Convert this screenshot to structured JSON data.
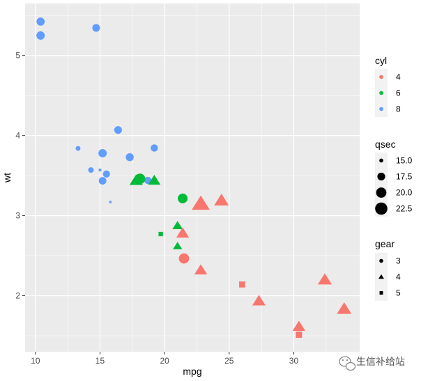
{
  "chart_data": {
    "type": "scatter",
    "title": "",
    "xlabel": "mpg",
    "ylabel": "wt",
    "xlim": [
      9.2,
      35.1
    ],
    "ylim": [
      1.3,
      5.65
    ],
    "x_ticks": [
      10,
      15,
      20,
      25,
      30
    ],
    "y_ticks": [
      2,
      3,
      4,
      5
    ],
    "x_tick_labels": [
      "10",
      "15",
      "20",
      "25",
      "30"
    ],
    "y_tick_labels": [
      "2",
      "3",
      "4",
      "5"
    ],
    "grid": true,
    "legend_position": "right",
    "points": [
      {
        "mpg": 21.0,
        "wt": 2.62,
        "cyl": "6",
        "gear": "4",
        "qsec": 16.46
      },
      {
        "mpg": 21.0,
        "wt": 2.875,
        "cyl": "6",
        "gear": "4",
        "qsec": 17.02
      },
      {
        "mpg": 22.8,
        "wt": 2.32,
        "cyl": "4",
        "gear": "4",
        "qsec": 18.61
      },
      {
        "mpg": 21.4,
        "wt": 3.215,
        "cyl": "6",
        "gear": "3",
        "qsec": 19.44
      },
      {
        "mpg": 18.7,
        "wt": 3.44,
        "cyl": "8",
        "gear": "3",
        "qsec": 17.02
      },
      {
        "mpg": 18.1,
        "wt": 3.46,
        "cyl": "6",
        "gear": "3",
        "qsec": 20.22
      },
      {
        "mpg": 14.3,
        "wt": 3.57,
        "cyl": "8",
        "gear": "3",
        "qsec": 15.84
      },
      {
        "mpg": 24.4,
        "wt": 3.19,
        "cyl": "4",
        "gear": "4",
        "qsec": 20.0
      },
      {
        "mpg": 22.8,
        "wt": 3.15,
        "cyl": "4",
        "gear": "4",
        "qsec": 22.9
      },
      {
        "mpg": 19.2,
        "wt": 3.44,
        "cyl": "6",
        "gear": "4",
        "qsec": 18.3
      },
      {
        "mpg": 17.8,
        "wt": 3.44,
        "cyl": "6",
        "gear": "4",
        "qsec": 18.9
      },
      {
        "mpg": 16.4,
        "wt": 4.07,
        "cyl": "8",
        "gear": "3",
        "qsec": 17.4
      },
      {
        "mpg": 17.3,
        "wt": 3.73,
        "cyl": "8",
        "gear": "3",
        "qsec": 17.6
      },
      {
        "mpg": 15.2,
        "wt": 3.78,
        "cyl": "8",
        "gear": "3",
        "qsec": 18.0
      },
      {
        "mpg": 10.4,
        "wt": 5.25,
        "cyl": "8",
        "gear": "3",
        "qsec": 17.98
      },
      {
        "mpg": 10.4,
        "wt": 5.424,
        "cyl": "8",
        "gear": "3",
        "qsec": 17.82
      },
      {
        "mpg": 14.7,
        "wt": 5.345,
        "cyl": "8",
        "gear": "3",
        "qsec": 17.42
      },
      {
        "mpg": 32.4,
        "wt": 2.2,
        "cyl": "4",
        "gear": "4",
        "qsec": 19.47
      },
      {
        "mpg": 30.4,
        "wt": 1.615,
        "cyl": "4",
        "gear": "4",
        "qsec": 18.52
      },
      {
        "mpg": 33.9,
        "wt": 1.835,
        "cyl": "4",
        "gear": "4",
        "qsec": 19.9
      },
      {
        "mpg": 21.5,
        "wt": 2.465,
        "cyl": "4",
        "gear": "3",
        "qsec": 20.01
      },
      {
        "mpg": 15.5,
        "wt": 3.52,
        "cyl": "8",
        "gear": "3",
        "qsec": 16.87
      },
      {
        "mpg": 15.2,
        "wt": 3.435,
        "cyl": "8",
        "gear": "3",
        "qsec": 17.3
      },
      {
        "mpg": 13.3,
        "wt": 3.84,
        "cyl": "8",
        "gear": "3",
        "qsec": 15.41
      },
      {
        "mpg": 19.2,
        "wt": 3.845,
        "cyl": "8",
        "gear": "3",
        "qsec": 17.05
      },
      {
        "mpg": 27.3,
        "wt": 1.935,
        "cyl": "4",
        "gear": "4",
        "qsec": 18.9
      },
      {
        "mpg": 26.0,
        "wt": 2.14,
        "cyl": "4",
        "gear": "5",
        "qsec": 16.7
      },
      {
        "mpg": 30.4,
        "wt": 1.513,
        "cyl": "4",
        "gear": "5",
        "qsec": 16.9
      },
      {
        "mpg": 15.8,
        "wt": 3.17,
        "cyl": "8",
        "gear": "5",
        "qsec": 14.5
      },
      {
        "mpg": 19.7,
        "wt": 2.77,
        "cyl": "6",
        "gear": "5",
        "qsec": 15.5
      },
      {
        "mpg": 15.0,
        "wt": 3.57,
        "cyl": "8",
        "gear": "5",
        "qsec": 14.6
      },
      {
        "mpg": 21.4,
        "wt": 2.78,
        "cyl": "4",
        "gear": "4",
        "qsec": 18.6
      }
    ],
    "legends": {
      "cyl": {
        "title": "cyl",
        "entries": [
          {
            "label": "4",
            "color": "#F8766D"
          },
          {
            "label": "6",
            "color": "#00BA38"
          },
          {
            "label": "8",
            "color": "#619CFF"
          }
        ]
      },
      "qsec": {
        "title": "qsec",
        "entries": [
          {
            "label": "15.0",
            "value": 15.0
          },
          {
            "label": "17.5",
            "value": 17.5
          },
          {
            "label": "20.0",
            "value": 20.0
          },
          {
            "label": "22.5",
            "value": 22.5
          }
        ]
      },
      "gear": {
        "title": "gear",
        "entries": [
          {
            "label": "3",
            "shape": "circle"
          },
          {
            "label": "4",
            "shape": "triangle"
          },
          {
            "label": "5",
            "shape": "square"
          }
        ]
      }
    }
  },
  "colors": {
    "panel_background": "#EBEBEB",
    "grid_major": "#FFFFFF",
    "legend_key_background": "#F2F2F2"
  },
  "watermark": {
    "text": "生信补给站",
    "icon": "wechat-icon"
  }
}
